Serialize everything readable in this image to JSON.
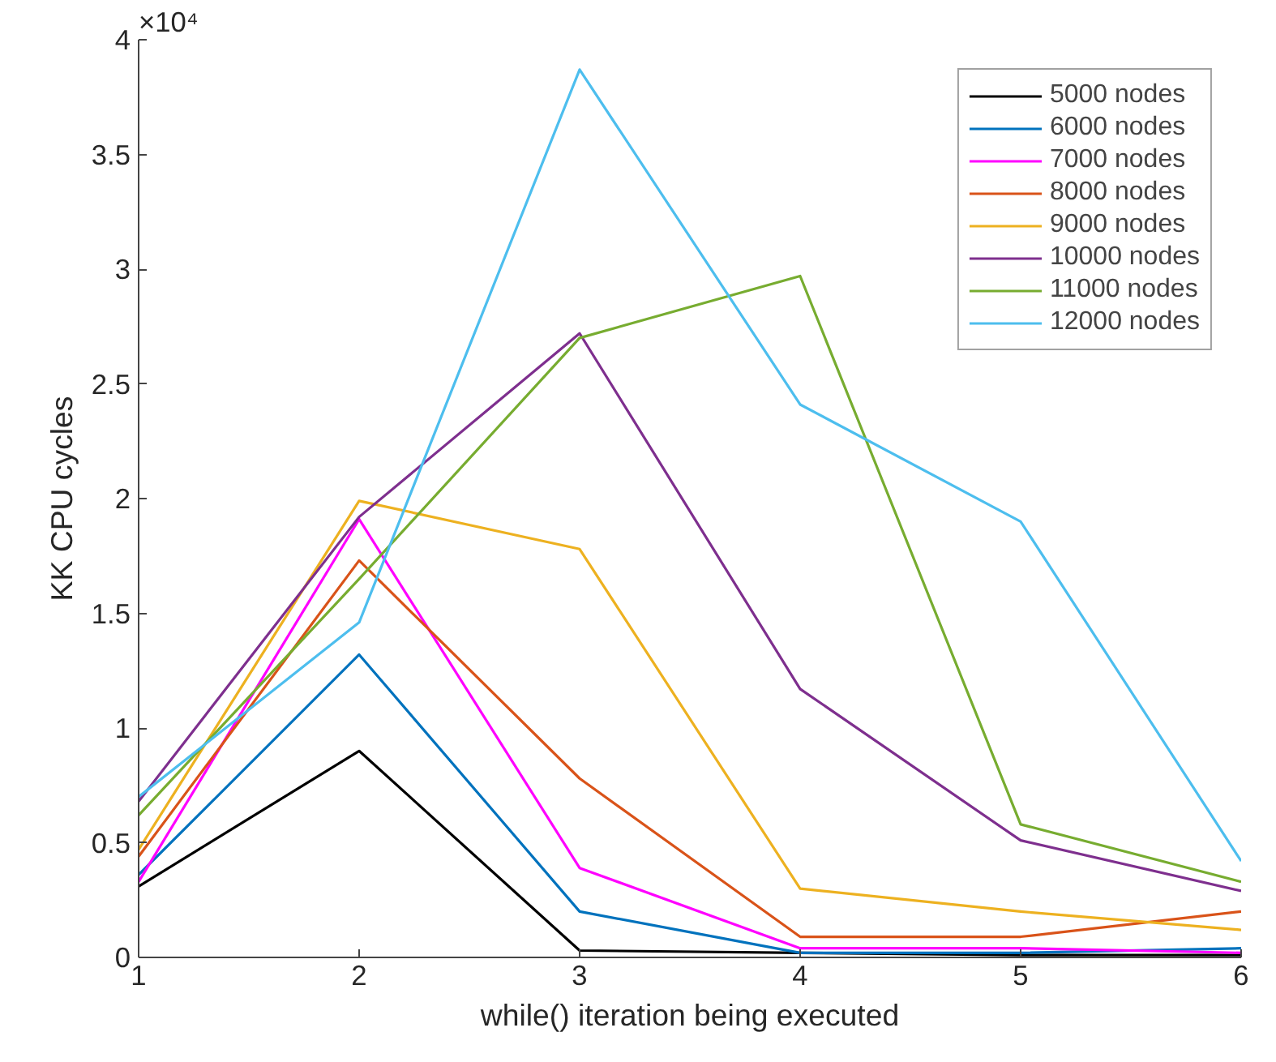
{
  "chart_data": {
    "type": "line",
    "xlabel": "while() iteration being executed",
    "ylabel": "KK CPU cycles",
    "annotations": [
      "×10⁴"
    ],
    "x": [
      1,
      2,
      3,
      4,
      5,
      6
    ],
    "xlim": [
      1,
      6
    ],
    "xticks": [
      1,
      2,
      3,
      4,
      5,
      6
    ],
    "ylim": [
      0,
      4
    ],
    "yticks": [
      0,
      0.5,
      1,
      1.5,
      2,
      2.5,
      3,
      3.5,
      4
    ],
    "grid": false,
    "legend": "top right",
    "marker": "none",
    "line_style": "solid",
    "series": [
      {
        "name": "5000 nodes",
        "color": "#000000",
        "values": [
          0.31,
          0.9,
          0.03,
          0.02,
          0.01,
          0.01
        ]
      },
      {
        "name": "6000 nodes",
        "color": "#0072bd",
        "values": [
          0.36,
          1.32,
          0.2,
          0.02,
          0.02,
          0.04
        ]
      },
      {
        "name": "7000 nodes",
        "color": "#ff00ff",
        "values": [
          0.33,
          1.91,
          0.39,
          0.04,
          0.04,
          0.02
        ]
      },
      {
        "name": "8000 nodes",
        "color": "#d95319",
        "values": [
          0.44,
          1.73,
          0.78,
          0.09,
          0.09,
          0.2
        ]
      },
      {
        "name": "9000 nodes",
        "color": "#edb120",
        "values": [
          0.47,
          1.99,
          1.78,
          0.3,
          0.2,
          0.12
        ]
      },
      {
        "name": "10000 nodes",
        "color": "#7e2f8e",
        "values": [
          0.68,
          1.92,
          2.72,
          1.17,
          0.51,
          0.29
        ]
      },
      {
        "name": "11000 nodes",
        "color": "#77ac30",
        "values": [
          0.62,
          1.65,
          2.7,
          2.97,
          0.58,
          0.33
        ]
      },
      {
        "name": "12000 nodes",
        "color": "#4dbeee",
        "values": [
          0.7,
          1.46,
          3.87,
          2.41,
          1.9,
          0.42
        ]
      }
    ]
  }
}
